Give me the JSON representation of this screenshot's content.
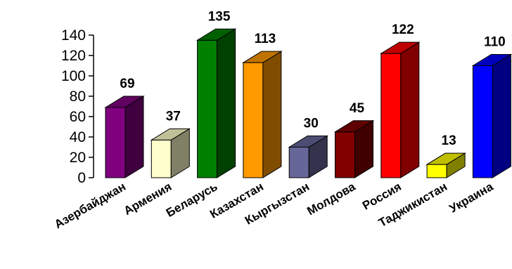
{
  "chart_data": {
    "type": "bar",
    "categories": [
      "Азербайджан",
      "Армения",
      "Беларусь",
      "Казахстан",
      "Кыргызстан",
      "Молдова",
      "Россия",
      "Таджикистан",
      "Украина"
    ],
    "values": [
      69,
      37,
      135,
      113,
      30,
      45,
      122,
      13,
      110
    ],
    "data_labels": [
      "69",
      "37",
      "135",
      "113",
      "30",
      "45",
      "122",
      "13",
      "110"
    ],
    "colors": [
      {
        "front": "#800080",
        "side": "#400040",
        "top": "#600060"
      },
      {
        "front": "#FFFFCC",
        "side": "#808066",
        "top": "#C0C099"
      },
      {
        "front": "#008000",
        "side": "#004000",
        "top": "#006000"
      },
      {
        "front": "#FF9900",
        "side": "#804D00",
        "top": "#BF7300"
      },
      {
        "front": "#666699",
        "side": "#33334D",
        "top": "#4D4D73"
      },
      {
        "front": "#800000",
        "side": "#400000",
        "top": "#600000"
      },
      {
        "front": "#FF0000",
        "side": "#800000",
        "top": "#BF0000"
      },
      {
        "front": "#FFFF00",
        "side": "#808000",
        "top": "#BFBF00"
      },
      {
        "front": "#0000FF",
        "side": "#000080",
        "top": "#0000BF"
      }
    ],
    "yticks": [
      "0",
      "20",
      "40",
      "60",
      "80",
      "100",
      "120",
      "140"
    ],
    "ylim": [
      0,
      140
    ],
    "grid": false,
    "legend": "none",
    "three_d": true,
    "title": "",
    "xlabel": "",
    "ylabel": ""
  }
}
